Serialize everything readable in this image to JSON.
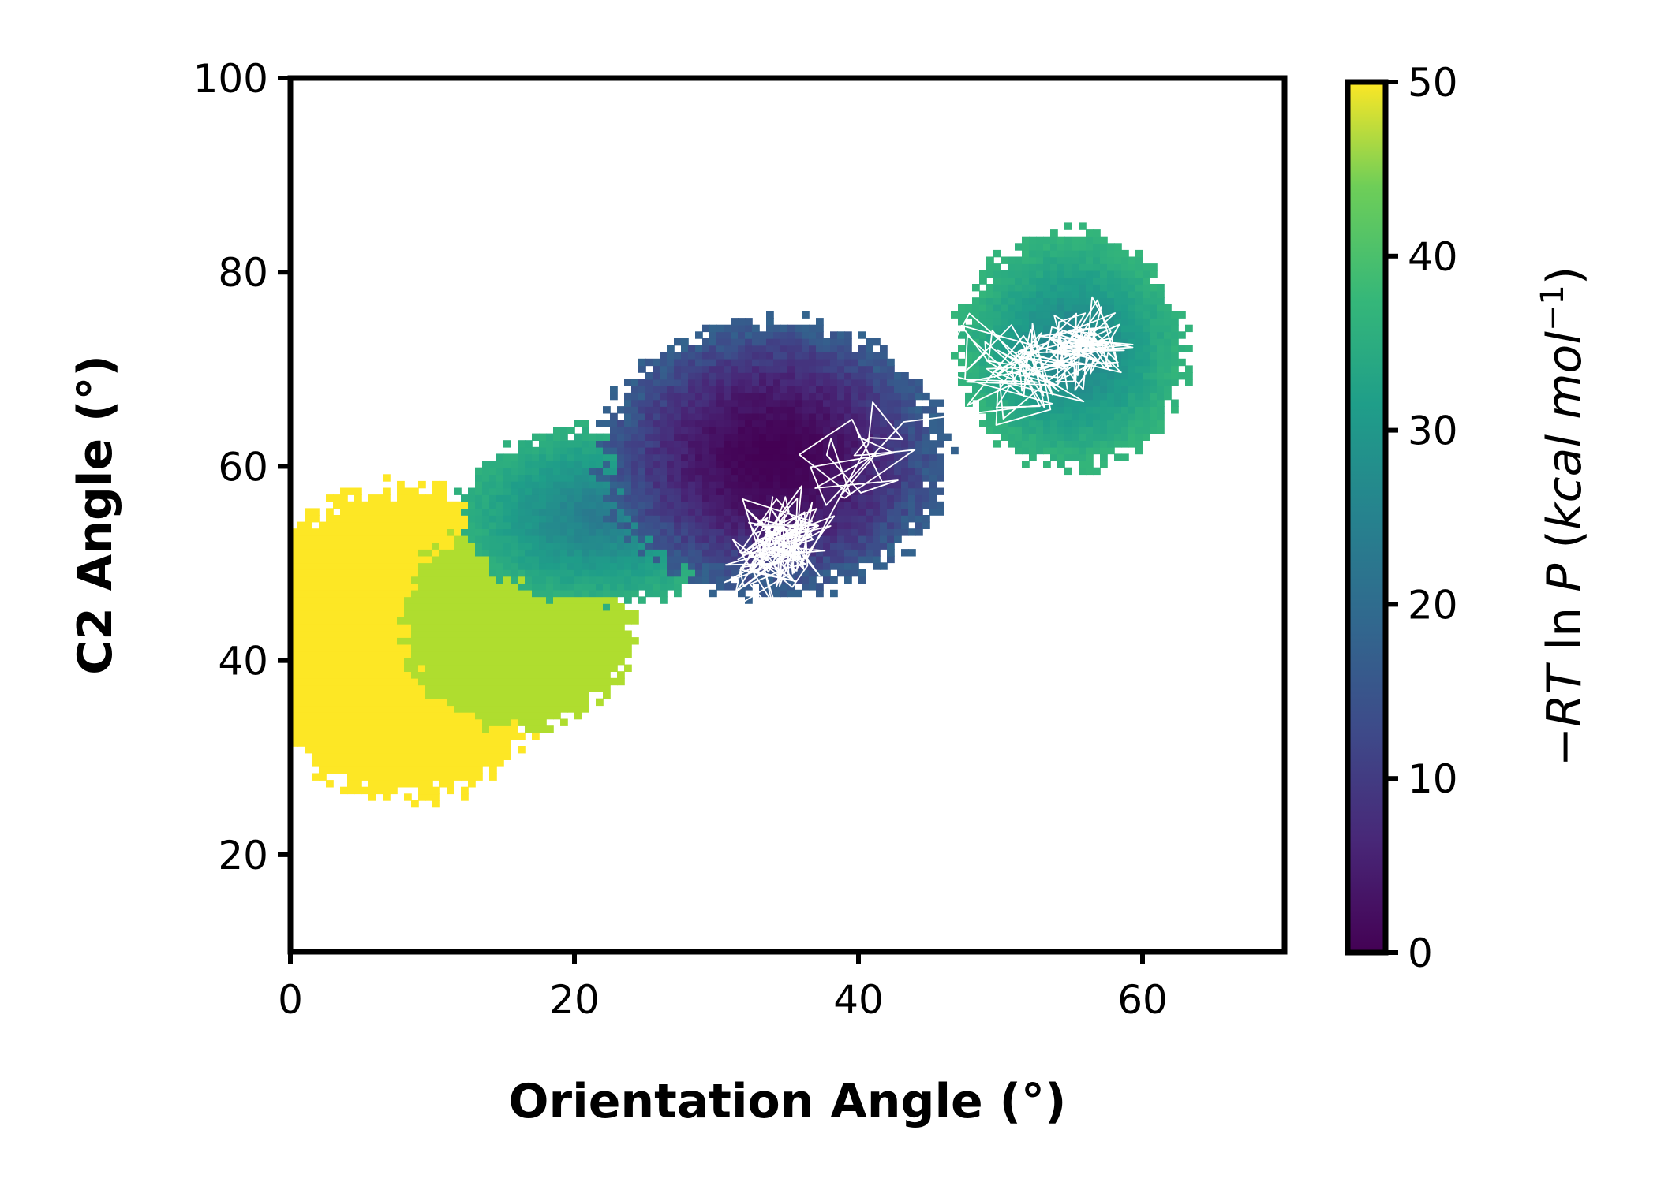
{
  "chart_data": {
    "type": "heatmap",
    "title": "",
    "xlabel": "Orientation Angle (°)",
    "ylabel": "C2 Angle (°)",
    "colorbar_label_parts": [
      "−",
      "RT",
      " ln ",
      "P",
      " (",
      "kcal mol",
      "−1",
      ")"
    ],
    "xlim": [
      0,
      70
    ],
    "ylim": [
      10,
      100
    ],
    "x_ticks": [
      "0",
      "20",
      "40",
      "60"
    ],
    "y_ticks": [
      "20",
      "40",
      "60",
      "80",
      "100"
    ],
    "colorbar": {
      "colormap": "viridis",
      "range": [
        0,
        50
      ],
      "ticks": [
        "0",
        "10",
        "20",
        "30",
        "40",
        "50"
      ]
    },
    "grid": false,
    "free_energy_regions": [
      {
        "name": "left yellow basin",
        "center": [
          8,
          42
        ],
        "radii": [
          11,
          16
        ],
        "value": 50
      },
      {
        "name": "yellow-green shoulder",
        "center": [
          16,
          44
        ],
        "radii": [
          8,
          11
        ],
        "value": 44
      },
      {
        "name": "teal edge",
        "center": [
          22,
          55
        ],
        "radii": [
          10,
          9
        ],
        "value": 26
      },
      {
        "name": "global minimum",
        "center": [
          34,
          61
        ],
        "radii": [
          12,
          14
        ],
        "value": 0
      },
      {
        "name": "upper-right basin",
        "center": [
          55,
          72
        ],
        "radii": [
          8,
          12
        ],
        "value": 27
      }
    ],
    "trajectory": {
      "color": "#ffffff",
      "clusters": [
        {
          "center": [
            34.3,
            51.5
          ],
          "spread": [
            2.3,
            3.8
          ],
          "points": 120
        },
        {
          "center": [
            40.5,
            60.5
          ],
          "spread": [
            3.0,
            3.8
          ],
          "points": 25
        },
        {
          "center": [
            51,
            70
          ],
          "spread": [
            3.0,
            3.5
          ],
          "points": 70
        },
        {
          "center": [
            55.5,
            72
          ],
          "spread": [
            2.3,
            3.0
          ],
          "points": 100
        }
      ]
    }
  }
}
